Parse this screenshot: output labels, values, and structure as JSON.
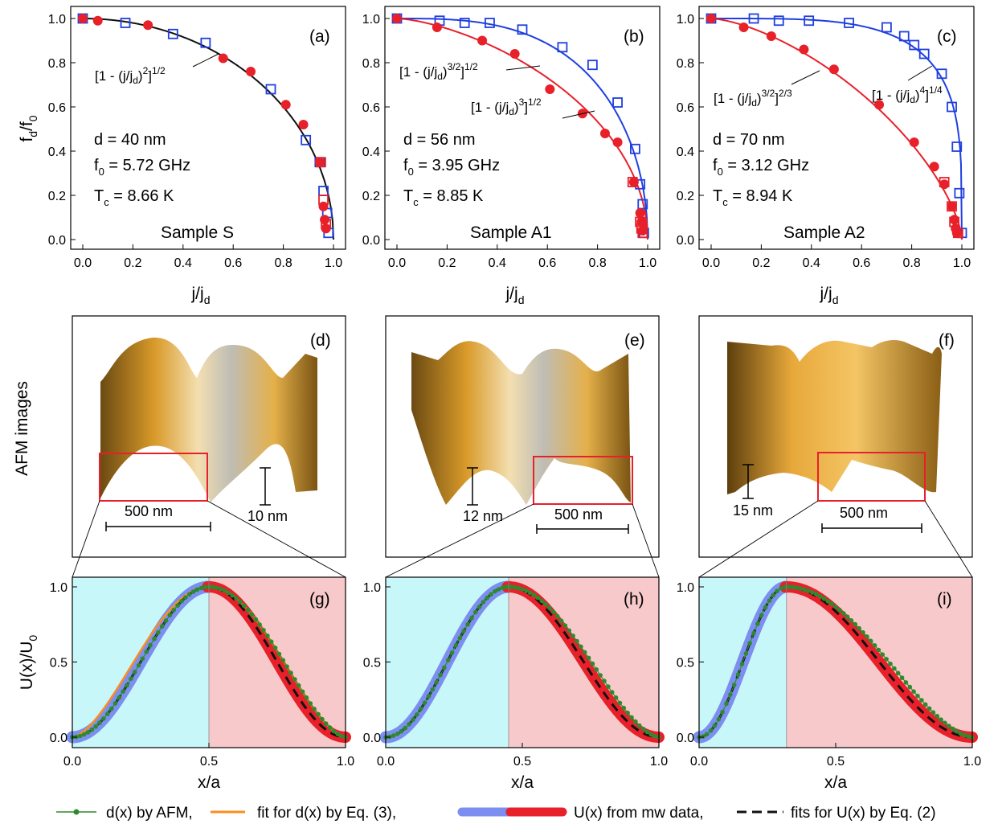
{
  "row_labels": {
    "afm": "AFM images"
  },
  "colors": {
    "red": "#e8202a",
    "blue": "#1f3fe0",
    "black": "#111111",
    "green": "#2f8a2f",
    "orange": "#ff8c1a",
    "cyan_bg": "#c8f7fa",
    "pink_bg": "#f8c9cb",
    "lightblue": "#7c8ff0"
  },
  "top_panels": [
    {
      "letter": "(a)",
      "sample": "Sample S",
      "d": "d = 40 nm",
      "f0": "5.72 GHz",
      "tc": "8.66 K"
    },
    {
      "letter": "(b)",
      "sample": "Sample A1",
      "d": "d = 56 nm",
      "f0": "3.95 GHz",
      "tc": "8.85 K"
    },
    {
      "letter": "(c)",
      "sample": "Sample A2",
      "d": "d = 70 nm",
      "f0": "3.12 GHz",
      "tc": "8.94 K"
    }
  ],
  "afm_panels": [
    {
      "letter": "(d)",
      "scale": "500 nm",
      "height": "10 nm"
    },
    {
      "letter": "(e)",
      "scale": "500 nm",
      "height": "12 nm"
    },
    {
      "letter": "(f)",
      "scale": "500 nm",
      "height": "15 nm"
    }
  ],
  "bottom_panels": [
    {
      "letter": "(g)"
    },
    {
      "letter": "(h)"
    },
    {
      "letter": "(i)"
    }
  ],
  "legend": {
    "green": "d(x) by AFM,",
    "orange": "fit for d(x) by Eq. (3),",
    "band": "U(x) from mw data,",
    "dashed": "fits for U(x) by Eq. (2)"
  },
  "chart_data": [
    {
      "type": "scatter",
      "panel": "(a)",
      "xlabel": "j/jd",
      "ylabel": "fd/f0",
      "xlim": [
        0,
        1.0
      ],
      "ylim": [
        -0.05,
        1.05
      ],
      "xticks": [
        "0.0",
        "0.2",
        "0.4",
        "0.6",
        "0.8",
        "1.0"
      ],
      "yticks": [
        "0.0",
        "0.2",
        "0.4",
        "0.6",
        "0.8",
        "1.0"
      ],
      "annotations": [
        "[1 - (j/jd)^2]^1/2"
      ],
      "fits": [
        {
          "color": "black",
          "p": 2,
          "q": 0.5
        }
      ],
      "series": [
        {
          "marker": "square",
          "color": "blue",
          "x": [
            0.0,
            0.17,
            0.36,
            0.49,
            0.75,
            0.89,
            0.945,
            0.96,
            0.975,
            0.98
          ],
          "y": [
            1.0,
            0.98,
            0.93,
            0.89,
            0.68,
            0.45,
            0.35,
            0.22,
            0.12,
            0.03
          ]
        },
        {
          "marker": "square",
          "color": "red",
          "x": [
            0.95,
            0.96,
            0.97
          ],
          "y": [
            0.35,
            0.18,
            0.07
          ]
        },
        {
          "marker": "circle",
          "color": "red",
          "x": [
            0.0,
            0.06,
            0.26,
            0.56,
            0.67,
            0.81,
            0.88,
            0.945,
            0.96,
            0.965,
            0.97
          ],
          "y": [
            1.0,
            0.99,
            0.97,
            0.82,
            0.76,
            0.61,
            0.52,
            0.35,
            0.15,
            0.09,
            0.05
          ]
        }
      ]
    },
    {
      "type": "scatter",
      "panel": "(b)",
      "xlabel": "j/jd",
      "ylabel": "",
      "xlim": [
        0,
        1.0
      ],
      "ylim": [
        -0.05,
        1.05
      ],
      "xticks": [
        "0.0",
        "0.2",
        "0.4",
        "0.6",
        "0.8",
        "1.0"
      ],
      "yticks": [
        "0.0",
        "0.2",
        "0.4",
        "0.6",
        "0.8",
        "1.0"
      ],
      "annotations": [
        "[1 - (j/jd)^3/2]^1/2",
        "[1 - (j/jd)^3]^1/2"
      ],
      "fits": [
        {
          "color": "blue",
          "p": 3,
          "q": 0.5
        },
        {
          "color": "red",
          "p": 1.5,
          "q": 0.5
        }
      ],
      "series": [
        {
          "marker": "square",
          "color": "blue",
          "x": [
            0.0,
            0.17,
            0.27,
            0.37,
            0.5,
            0.66,
            0.78,
            0.88,
            0.95,
            0.97,
            0.98,
            0.985
          ],
          "y": [
            1.0,
            0.99,
            0.98,
            0.98,
            0.95,
            0.87,
            0.79,
            0.62,
            0.41,
            0.25,
            0.16,
            0.03
          ]
        },
        {
          "marker": "square",
          "color": "red",
          "x": [
            0.94,
            0.97,
            0.975,
            0.98
          ],
          "y": [
            0.26,
            0.08,
            0.05,
            0.03
          ]
        },
        {
          "marker": "circle",
          "color": "red",
          "x": [
            0.0,
            0.16,
            0.34,
            0.47,
            0.61,
            0.74,
            0.83,
            0.88,
            0.945,
            0.97,
            0.975,
            0.98
          ],
          "y": [
            1.0,
            0.96,
            0.9,
            0.84,
            0.68,
            0.57,
            0.48,
            0.44,
            0.26,
            0.12,
            0.08,
            0.04
          ]
        }
      ]
    },
    {
      "type": "scatter",
      "panel": "(c)",
      "xlabel": "j/jd",
      "ylabel": "",
      "xlim": [
        0,
        1.0
      ],
      "ylim": [
        -0.05,
        1.05
      ],
      "xticks": [
        "0.0",
        "0.2",
        "0.4",
        "0.6",
        "0.8",
        "1.0"
      ],
      "yticks": [
        "0.0",
        "0.2",
        "0.4",
        "0.6",
        "0.8",
        "1.0"
      ],
      "annotations": [
        "[1 - (j/jd)^3/2]^2/3",
        "[1 - (j/jd)^4]^1/4"
      ],
      "fits": [
        {
          "color": "blue",
          "p": 4,
          "q": 0.25
        },
        {
          "color": "red",
          "p": 1.5,
          "q": 0.6667
        }
      ],
      "series": [
        {
          "marker": "square",
          "color": "blue",
          "x": [
            0.0,
            0.17,
            0.27,
            0.39,
            0.55,
            0.7,
            0.77,
            0.81,
            0.85,
            0.92,
            0.96,
            0.98,
            0.99,
            1.0
          ],
          "y": [
            1.0,
            1.0,
            0.99,
            0.99,
            0.98,
            0.96,
            0.92,
            0.88,
            0.84,
            0.75,
            0.6,
            0.42,
            0.21,
            0.03
          ]
        },
        {
          "marker": "square",
          "color": "red",
          "x": [
            0.93,
            0.96,
            0.97,
            0.985
          ],
          "y": [
            0.26,
            0.15,
            0.08,
            0.03
          ]
        },
        {
          "marker": "circle",
          "color": "red",
          "x": [
            0.0,
            0.13,
            0.24,
            0.37,
            0.49,
            0.67,
            0.81,
            0.89,
            0.93,
            0.96,
            0.97,
            0.975,
            0.98
          ],
          "y": [
            1.0,
            0.96,
            0.92,
            0.86,
            0.77,
            0.61,
            0.44,
            0.33,
            0.25,
            0.15,
            0.09,
            0.05,
            0.03
          ]
        }
      ]
    },
    {
      "type": "line",
      "panel": "(g)",
      "xlabel": "x/a",
      "ylabel": "U(x)/U0",
      "xlim": [
        0,
        1.0
      ],
      "ylim": [
        -0.05,
        1.05
      ],
      "xticks": [
        "0.0",
        "0.5",
        "1.0"
      ],
      "yticks": [
        "0.0",
        "0.5",
        "1.0"
      ],
      "split": 0.5,
      "green_width": 1.0,
      "orange": true,
      "green_shift": 0.0
    },
    {
      "type": "line",
      "panel": "(h)",
      "xlabel": "x/a",
      "ylabel": "",
      "xlim": [
        0,
        1.0
      ],
      "ylim": [
        -0.05,
        1.05
      ],
      "xticks": [
        "0.0",
        "0.5",
        "1.0"
      ],
      "yticks": [
        "0.0",
        "0.5",
        "1.0"
      ],
      "split": 0.45,
      "green_width": 0.95,
      "orange": false,
      "green_shift": 0.0
    },
    {
      "type": "line",
      "panel": "(i)",
      "xlabel": "x/a",
      "ylabel": "",
      "xlim": [
        0,
        1.0
      ],
      "ylim": [
        -0.05,
        1.05
      ],
      "xticks": [
        "0.0",
        "0.5",
        "1.0"
      ],
      "yticks": [
        "0.0",
        "0.5",
        "1.0"
      ],
      "split": 0.32,
      "green_width": 1.0,
      "orange": false,
      "green_shift": 0.0
    }
  ]
}
